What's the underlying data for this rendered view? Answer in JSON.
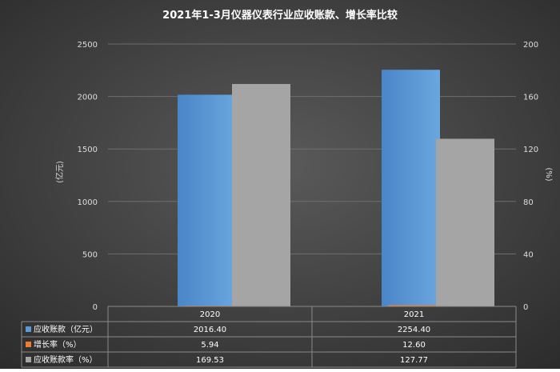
{
  "chart_data": {
    "type": "bar",
    "title": "2021年1-3月仪器仪表行业应收账款、增长率比较",
    "categories": [
      "2020",
      "2021"
    ],
    "ylabel_left": "(亿元)",
    "ylabel_right": "(%)",
    "ylim_left": [
      0,
      2500
    ],
    "ylim_right": [
      0,
      200
    ],
    "yticks_left": [
      "0",
      "500",
      "1000",
      "1500",
      "2000",
      "2500"
    ],
    "yticks_right": [
      "0",
      "40",
      "80",
      "120",
      "160",
      "200"
    ],
    "grid": true,
    "legend": "data-table",
    "series": [
      {
        "name": "应收账款（亿元）",
        "axis": "left",
        "color": "#5b9bd5",
        "values": [
          2016.4,
          2254.4
        ],
        "labels": [
          "2016.40",
          "2254.40"
        ]
      },
      {
        "name": "增长率（%）",
        "axis": "left",
        "color": "#ed7d31",
        "values": [
          5.94,
          12.6
        ],
        "labels": [
          "5.94",
          "12.60"
        ]
      },
      {
        "name": "应收账款率（%）",
        "axis": "right",
        "color": "#a5a5a5",
        "values": [
          169.53,
          127.77
        ],
        "labels": [
          "169.53",
          "127.77"
        ]
      }
    ]
  }
}
